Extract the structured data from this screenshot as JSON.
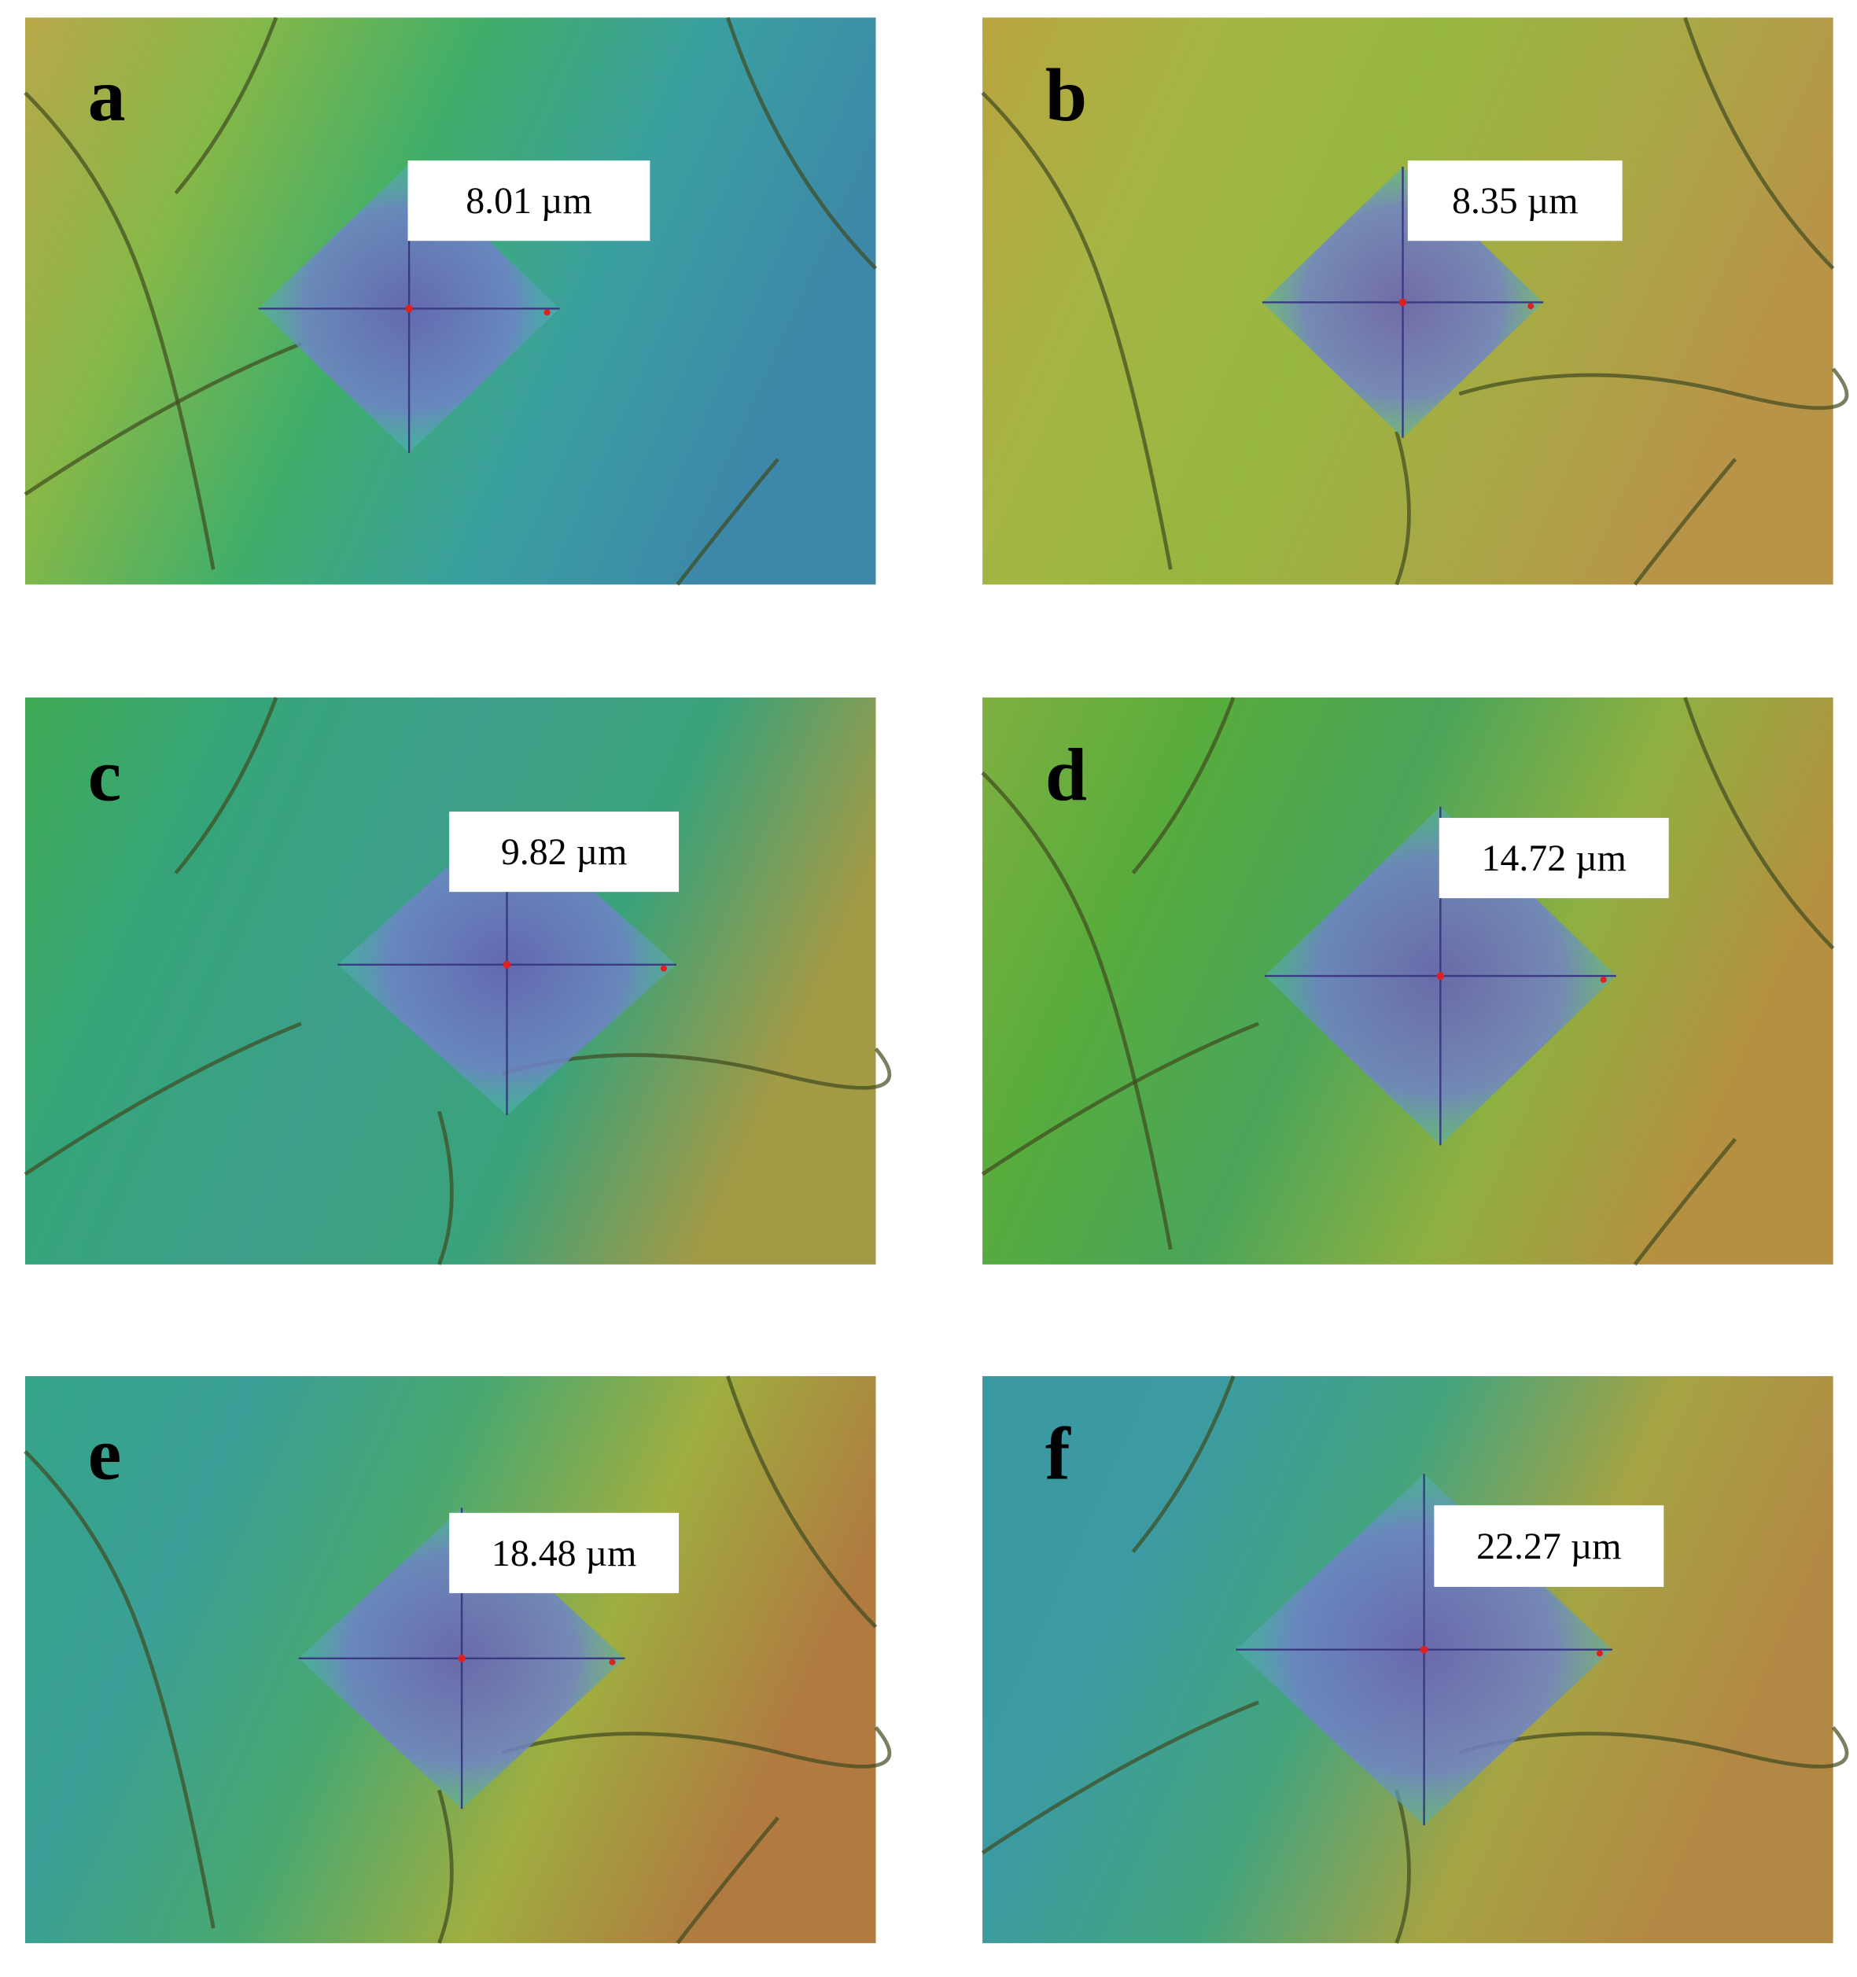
{
  "panels": [
    {
      "letter": "a",
      "measurement": "8.01 µm"
    },
    {
      "letter": "b",
      "measurement": "8.35 µm"
    },
    {
      "letter": "c",
      "measurement": "9.82 µm"
    },
    {
      "letter": "d",
      "measurement": "14.72 µm"
    },
    {
      "letter": "e",
      "measurement": "18.48 µm"
    },
    {
      "letter": "f",
      "measurement": "22.27 µm"
    }
  ]
}
